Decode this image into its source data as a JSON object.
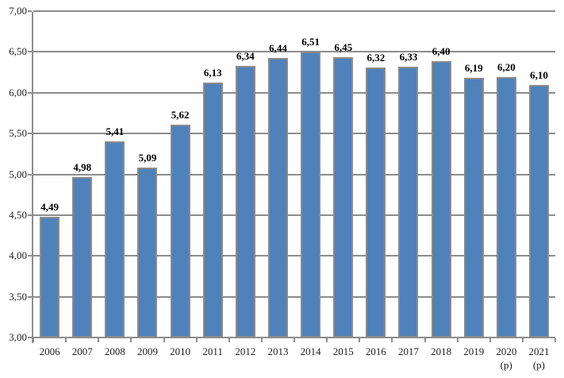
{
  "chart_data": {
    "type": "bar",
    "title": "",
    "xlabel": "",
    "ylabel": "",
    "categories": [
      "2006",
      "2007",
      "2008",
      "2009",
      "2010",
      "2011",
      "2012",
      "2013",
      "2014",
      "2015",
      "2016",
      "2017",
      "2018",
      "2019",
      "2020",
      "2021"
    ],
    "category_sublabels": [
      "",
      "",
      "",
      "",
      "",
      "",
      "",
      "",
      "",
      "",
      "",
      "",
      "",
      "",
      "(p)",
      "(p)"
    ],
    "values": [
      4.49,
      4.98,
      5.41,
      5.09,
      5.62,
      6.13,
      6.34,
      6.44,
      6.51,
      6.45,
      6.32,
      6.33,
      6.4,
      6.19,
      6.2,
      6.1
    ],
    "value_labels": [
      "4,49",
      "4,98",
      "5,41",
      "5,09",
      "5,62",
      "6,13",
      "6,34",
      "6,44",
      "6,51",
      "6,45",
      "6,32",
      "6,33",
      "6,40",
      "6,19",
      "6,20",
      "6,10"
    ],
    "ylim": [
      3.0,
      7.0
    ],
    "ytick_step": 0.5,
    "ytick_labels": [
      "7,00",
      "6,50",
      "6,00",
      "5,50",
      "5,00",
      "4,50",
      "4,00",
      "3,50",
      "3,00"
    ],
    "grid": true,
    "legend": "none",
    "decimal_separator": ",",
    "colors": {
      "bar_fill": "#4F81BB",
      "bar_border": "#8B8B8B",
      "gridline": "#8C8C8C",
      "axis": "#8C8C8C",
      "axis_text": "#1f1f1f",
      "data_label_text": "#000000",
      "background": "#ffffff"
    }
  }
}
